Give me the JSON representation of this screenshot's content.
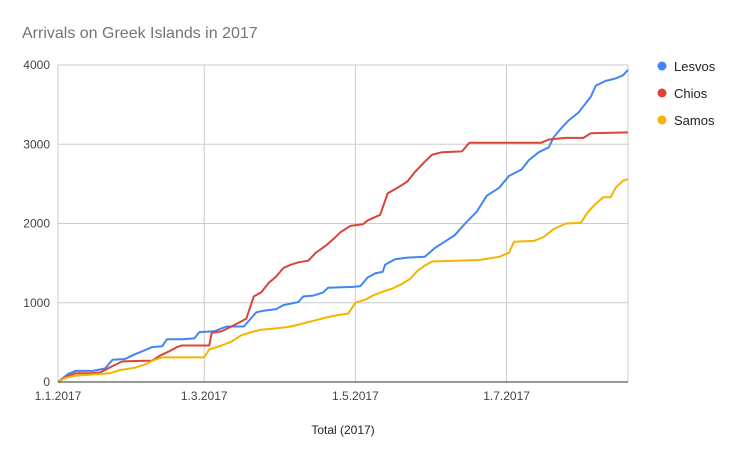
{
  "chart_data": {
    "type": "line",
    "title": "Arrivals on Greek Islands in 2017",
    "xlabel": "Total (2017)",
    "ylabel": "",
    "x_range": [
      "2017-01-01",
      "2017-08-19"
    ],
    "x_ticks": [
      {
        "date": "2017-01-01",
        "label": "1.1.2017"
      },
      {
        "date": "2017-03-01",
        "label": "1.3.2017"
      },
      {
        "date": "2017-05-01",
        "label": "1.5.2017"
      },
      {
        "date": "2017-07-01",
        "label": "1.7.2017"
      }
    ],
    "ylim": [
      0,
      4000
    ],
    "y_ticks": [
      0,
      1000,
      2000,
      3000,
      4000
    ],
    "grid": true,
    "legend_position": "right",
    "series": [
      {
        "name": "Lesvos",
        "color": "#4285f4",
        "points": [
          [
            "2017-01-01",
            0
          ],
          [
            "2017-01-05",
            100
          ],
          [
            "2017-01-08",
            140
          ],
          [
            "2017-01-15",
            140
          ],
          [
            "2017-01-20",
            170
          ],
          [
            "2017-01-23",
            280
          ],
          [
            "2017-01-28",
            290
          ],
          [
            "2017-02-01",
            350
          ],
          [
            "2017-02-05",
            400
          ],
          [
            "2017-02-08",
            440
          ],
          [
            "2017-02-12",
            450
          ],
          [
            "2017-02-14",
            540
          ],
          [
            "2017-02-20",
            540
          ],
          [
            "2017-02-25",
            550
          ],
          [
            "2017-02-27",
            630
          ],
          [
            "2017-03-05",
            640
          ],
          [
            "2017-03-10",
            700
          ],
          [
            "2017-03-17",
            700
          ],
          [
            "2017-03-22",
            880
          ],
          [
            "2017-03-25",
            900
          ],
          [
            "2017-03-30",
            920
          ],
          [
            "2017-04-02",
            970
          ],
          [
            "2017-04-08",
            1010
          ],
          [
            "2017-04-10",
            1080
          ],
          [
            "2017-04-14",
            1090
          ],
          [
            "2017-04-18",
            1130
          ],
          [
            "2017-04-20",
            1190
          ],
          [
            "2017-04-30",
            1200
          ],
          [
            "2017-05-03",
            1210
          ],
          [
            "2017-05-06",
            1320
          ],
          [
            "2017-05-09",
            1370
          ],
          [
            "2017-05-12",
            1390
          ],
          [
            "2017-05-13",
            1480
          ],
          [
            "2017-05-17",
            1550
          ],
          [
            "2017-05-22",
            1570
          ],
          [
            "2017-05-29",
            1580
          ],
          [
            "2017-06-02",
            1690
          ],
          [
            "2017-06-05",
            1750
          ],
          [
            "2017-06-10",
            1850
          ],
          [
            "2017-06-14",
            1990
          ],
          [
            "2017-06-19",
            2150
          ],
          [
            "2017-06-23",
            2350
          ],
          [
            "2017-06-28",
            2450
          ],
          [
            "2017-07-02",
            2600
          ],
          [
            "2017-07-07",
            2680
          ],
          [
            "2017-07-10",
            2800
          ],
          [
            "2017-07-14",
            2900
          ],
          [
            "2017-07-18",
            2960
          ],
          [
            "2017-07-20",
            3090
          ],
          [
            "2017-07-23",
            3200
          ],
          [
            "2017-07-26",
            3300
          ],
          [
            "2017-07-30",
            3400
          ],
          [
            "2017-08-04",
            3600
          ],
          [
            "2017-08-06",
            3740
          ],
          [
            "2017-08-10",
            3800
          ],
          [
            "2017-08-14",
            3830
          ],
          [
            "2017-08-17",
            3870
          ],
          [
            "2017-08-19",
            3940
          ]
        ]
      },
      {
        "name": "Chios",
        "color": "#db4437",
        "points": [
          [
            "2017-01-01",
            0
          ],
          [
            "2017-01-04",
            60
          ],
          [
            "2017-01-08",
            110
          ],
          [
            "2017-01-14",
            110
          ],
          [
            "2017-01-18",
            120
          ],
          [
            "2017-01-23",
            200
          ],
          [
            "2017-01-27",
            260
          ],
          [
            "2017-02-08",
            270
          ],
          [
            "2017-02-11",
            330
          ],
          [
            "2017-02-15",
            390
          ],
          [
            "2017-02-18",
            440
          ],
          [
            "2017-02-20",
            460
          ],
          [
            "2017-03-03",
            460
          ],
          [
            "2017-03-04",
            620
          ],
          [
            "2017-03-08",
            640
          ],
          [
            "2017-03-12",
            700
          ],
          [
            "2017-03-15",
            750
          ],
          [
            "2017-03-18",
            800
          ],
          [
            "2017-03-21",
            1080
          ],
          [
            "2017-03-24",
            1130
          ],
          [
            "2017-03-27",
            1250
          ],
          [
            "2017-03-30",
            1330
          ],
          [
            "2017-04-02",
            1440
          ],
          [
            "2017-04-05",
            1480
          ],
          [
            "2017-04-08",
            1510
          ],
          [
            "2017-04-12",
            1530
          ],
          [
            "2017-04-15",
            1630
          ],
          [
            "2017-04-19",
            1720
          ],
          [
            "2017-04-22",
            1800
          ],
          [
            "2017-04-25",
            1890
          ],
          [
            "2017-04-29",
            1970
          ],
          [
            "2017-05-04",
            1990
          ],
          [
            "2017-05-06",
            2040
          ],
          [
            "2017-05-11",
            2110
          ],
          [
            "2017-05-14",
            2380
          ],
          [
            "2017-05-18",
            2450
          ],
          [
            "2017-05-22",
            2530
          ],
          [
            "2017-05-25",
            2650
          ],
          [
            "2017-05-29",
            2780
          ],
          [
            "2017-06-01",
            2870
          ],
          [
            "2017-06-05",
            2900
          ],
          [
            "2017-06-13",
            2910
          ],
          [
            "2017-06-16",
            3020
          ],
          [
            "2017-07-02",
            3020
          ],
          [
            "2017-07-15",
            3020
          ],
          [
            "2017-07-18",
            3060
          ],
          [
            "2017-07-25",
            3080
          ],
          [
            "2017-08-01",
            3080
          ],
          [
            "2017-08-04",
            3140
          ],
          [
            "2017-08-19",
            3150
          ]
        ]
      },
      {
        "name": "Samos",
        "color": "#f4b400",
        "points": [
          [
            "2017-01-01",
            0
          ],
          [
            "2017-01-04",
            50
          ],
          [
            "2017-01-08",
            80
          ],
          [
            "2017-01-22",
            110
          ],
          [
            "2017-01-26",
            150
          ],
          [
            "2017-02-01",
            180
          ],
          [
            "2017-02-05",
            220
          ],
          [
            "2017-02-09",
            280
          ],
          [
            "2017-02-12",
            310
          ],
          [
            "2017-03-01",
            310
          ],
          [
            "2017-03-03",
            410
          ],
          [
            "2017-03-08",
            460
          ],
          [
            "2017-03-12",
            510
          ],
          [
            "2017-03-16",
            590
          ],
          [
            "2017-03-20",
            630
          ],
          [
            "2017-03-24",
            660
          ],
          [
            "2017-03-31",
            680
          ],
          [
            "2017-04-05",
            700
          ],
          [
            "2017-04-10",
            740
          ],
          [
            "2017-04-15",
            780
          ],
          [
            "2017-04-20",
            820
          ],
          [
            "2017-04-25",
            850
          ],
          [
            "2017-04-28",
            860
          ],
          [
            "2017-05-01",
            1000
          ],
          [
            "2017-05-05",
            1040
          ],
          [
            "2017-05-08",
            1090
          ],
          [
            "2017-05-12",
            1140
          ],
          [
            "2017-05-16",
            1180
          ],
          [
            "2017-05-20",
            1240
          ],
          [
            "2017-05-23",
            1300
          ],
          [
            "2017-05-26",
            1400
          ],
          [
            "2017-05-29",
            1470
          ],
          [
            "2017-06-01",
            1520
          ],
          [
            "2017-06-20",
            1540
          ],
          [
            "2017-06-28",
            1580
          ],
          [
            "2017-07-02",
            1630
          ],
          [
            "2017-07-04",
            1770
          ],
          [
            "2017-07-12",
            1780
          ],
          [
            "2017-07-16",
            1830
          ],
          [
            "2017-07-20",
            1930
          ],
          [
            "2017-07-25",
            2000
          ],
          [
            "2017-07-31",
            2010
          ],
          [
            "2017-08-03",
            2150
          ],
          [
            "2017-08-06",
            2250
          ],
          [
            "2017-08-09",
            2330
          ],
          [
            "2017-08-12",
            2330
          ],
          [
            "2017-08-14",
            2450
          ],
          [
            "2017-08-17",
            2540
          ],
          [
            "2017-08-19",
            2560
          ]
        ]
      }
    ]
  }
}
